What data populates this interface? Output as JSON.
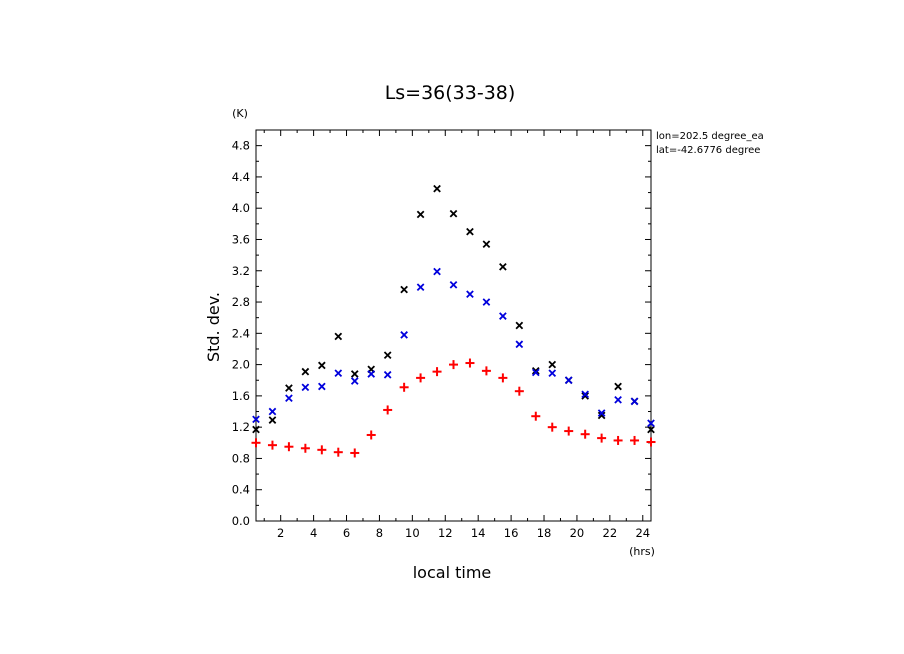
{
  "chart_data": {
    "type": "scatter",
    "title": "Ls=36(33-38)",
    "xlabel": "local time",
    "ylabel": "Std. dev.",
    "x_unit": "(hrs)",
    "y_unit": "(K)",
    "xlim": [
      0.5,
      24.5
    ],
    "ylim": [
      0.0,
      5.0
    ],
    "xticks": [
      "2",
      "4",
      "6",
      "8",
      "10",
      "12",
      "14",
      "16",
      "18",
      "20",
      "22",
      "24"
    ],
    "yticks": [
      "0.0",
      "0.4",
      "0.8",
      "1.2",
      "1.6",
      "2.0",
      "2.4",
      "2.8",
      "3.2",
      "3.6",
      "4.0",
      "4.4",
      "4.8"
    ],
    "x": [
      0.5,
      1.5,
      2.5,
      3.5,
      4.5,
      5.5,
      6.5,
      7.5,
      8.5,
      9.5,
      10.5,
      11.5,
      12.5,
      13.5,
      14.5,
      15.5,
      16.5,
      17.5,
      18.5,
      19.5,
      20.5,
      21.5,
      22.5,
      23.5,
      24.5
    ],
    "annotations": [
      "lon=202.5 degree_ea",
      "lat=-42.6776 degree"
    ],
    "grid": false,
    "series": [
      {
        "marker": "x",
        "color": "#000000",
        "values": [
          1.17,
          1.29,
          1.7,
          1.91,
          1.99,
          2.36,
          1.88,
          1.94,
          2.12,
          2.96,
          3.92,
          4.25,
          3.93,
          3.7,
          3.54,
          3.25,
          2.5,
          1.92,
          2.0,
          1.8,
          1.6,
          1.35,
          1.72,
          1.53,
          1.17
        ]
      },
      {
        "marker": "x",
        "color": "#0000dd",
        "values": [
          1.3,
          1.4,
          1.57,
          1.71,
          1.72,
          1.89,
          1.79,
          1.88,
          1.87,
          2.38,
          2.99,
          3.19,
          3.02,
          2.9,
          2.8,
          2.62,
          2.26,
          1.9,
          1.89,
          1.8,
          1.62,
          1.38,
          1.55,
          1.53,
          1.25
        ]
      },
      {
        "marker": "+",
        "color": "#ff0000",
        "values": [
          1.0,
          0.97,
          0.95,
          0.93,
          0.91,
          0.88,
          0.87,
          1.1,
          1.42,
          1.71,
          1.83,
          1.91,
          2.0,
          2.02,
          1.92,
          1.83,
          1.66,
          1.34,
          1.2,
          1.15,
          1.11,
          1.06,
          1.03,
          1.03,
          1.01
        ]
      }
    ]
  }
}
